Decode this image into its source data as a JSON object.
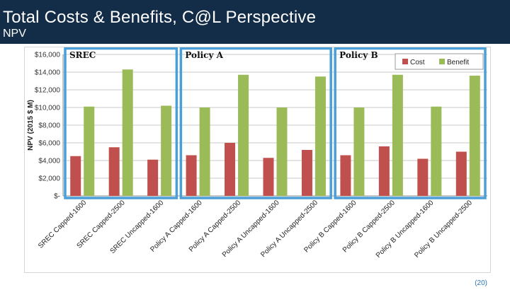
{
  "header": {
    "title": "Total Costs & Benefits, C@L Perspective",
    "subtitle": "NPV"
  },
  "page_number": "(20)",
  "colors": {
    "header_bg": "#132c47",
    "cost": "#c0504d",
    "benefit": "#9bbb59",
    "group_box": "#4a9fd8"
  },
  "chart_data": {
    "type": "bar",
    "title": "",
    "xlabel": "",
    "ylabel": "NPV (2015 $ M)",
    "ylim": [
      0,
      16000
    ],
    "yticks": [
      0,
      2000,
      4000,
      6000,
      8000,
      10000,
      12000,
      14000,
      16000
    ],
    "ytick_labels": [
      "$-",
      "$2,000",
      "$4,000",
      "$6,000",
      "$8,000",
      "$10,000",
      "$12,000",
      "$14,000",
      "$16,000"
    ],
    "grid": true,
    "legend_position": "top-right",
    "categories": [
      "SREC Capped-1600",
      "SREC Capped-2500",
      "SREC Uncapped-1600",
      "Policy A Capped-1600",
      "Policy A Capped-2500",
      "Policy A Uncapped-1600",
      "Policy A Uncapped-2500",
      "Policy B Capped-1600",
      "Policy B Capped-2500",
      "Policy B Uncapped-1600",
      "Policy B Uncapped-2500"
    ],
    "series": [
      {
        "name": "Cost",
        "values": [
          4500,
          5500,
          4100,
          4600,
          6000,
          4300,
          5200,
          4600,
          5600,
          4200,
          5000
        ]
      },
      {
        "name": "Benefit",
        "values": [
          10100,
          14300,
          10200,
          10000,
          13700,
          10000,
          13500,
          10000,
          13700,
          10100,
          13600
        ]
      }
    ],
    "groups": [
      {
        "label": "SREC",
        "start": 0,
        "end": 2
      },
      {
        "label": "Policy A",
        "start": 3,
        "end": 6
      },
      {
        "label": "Policy B",
        "start": 7,
        "end": 10
      }
    ]
  }
}
